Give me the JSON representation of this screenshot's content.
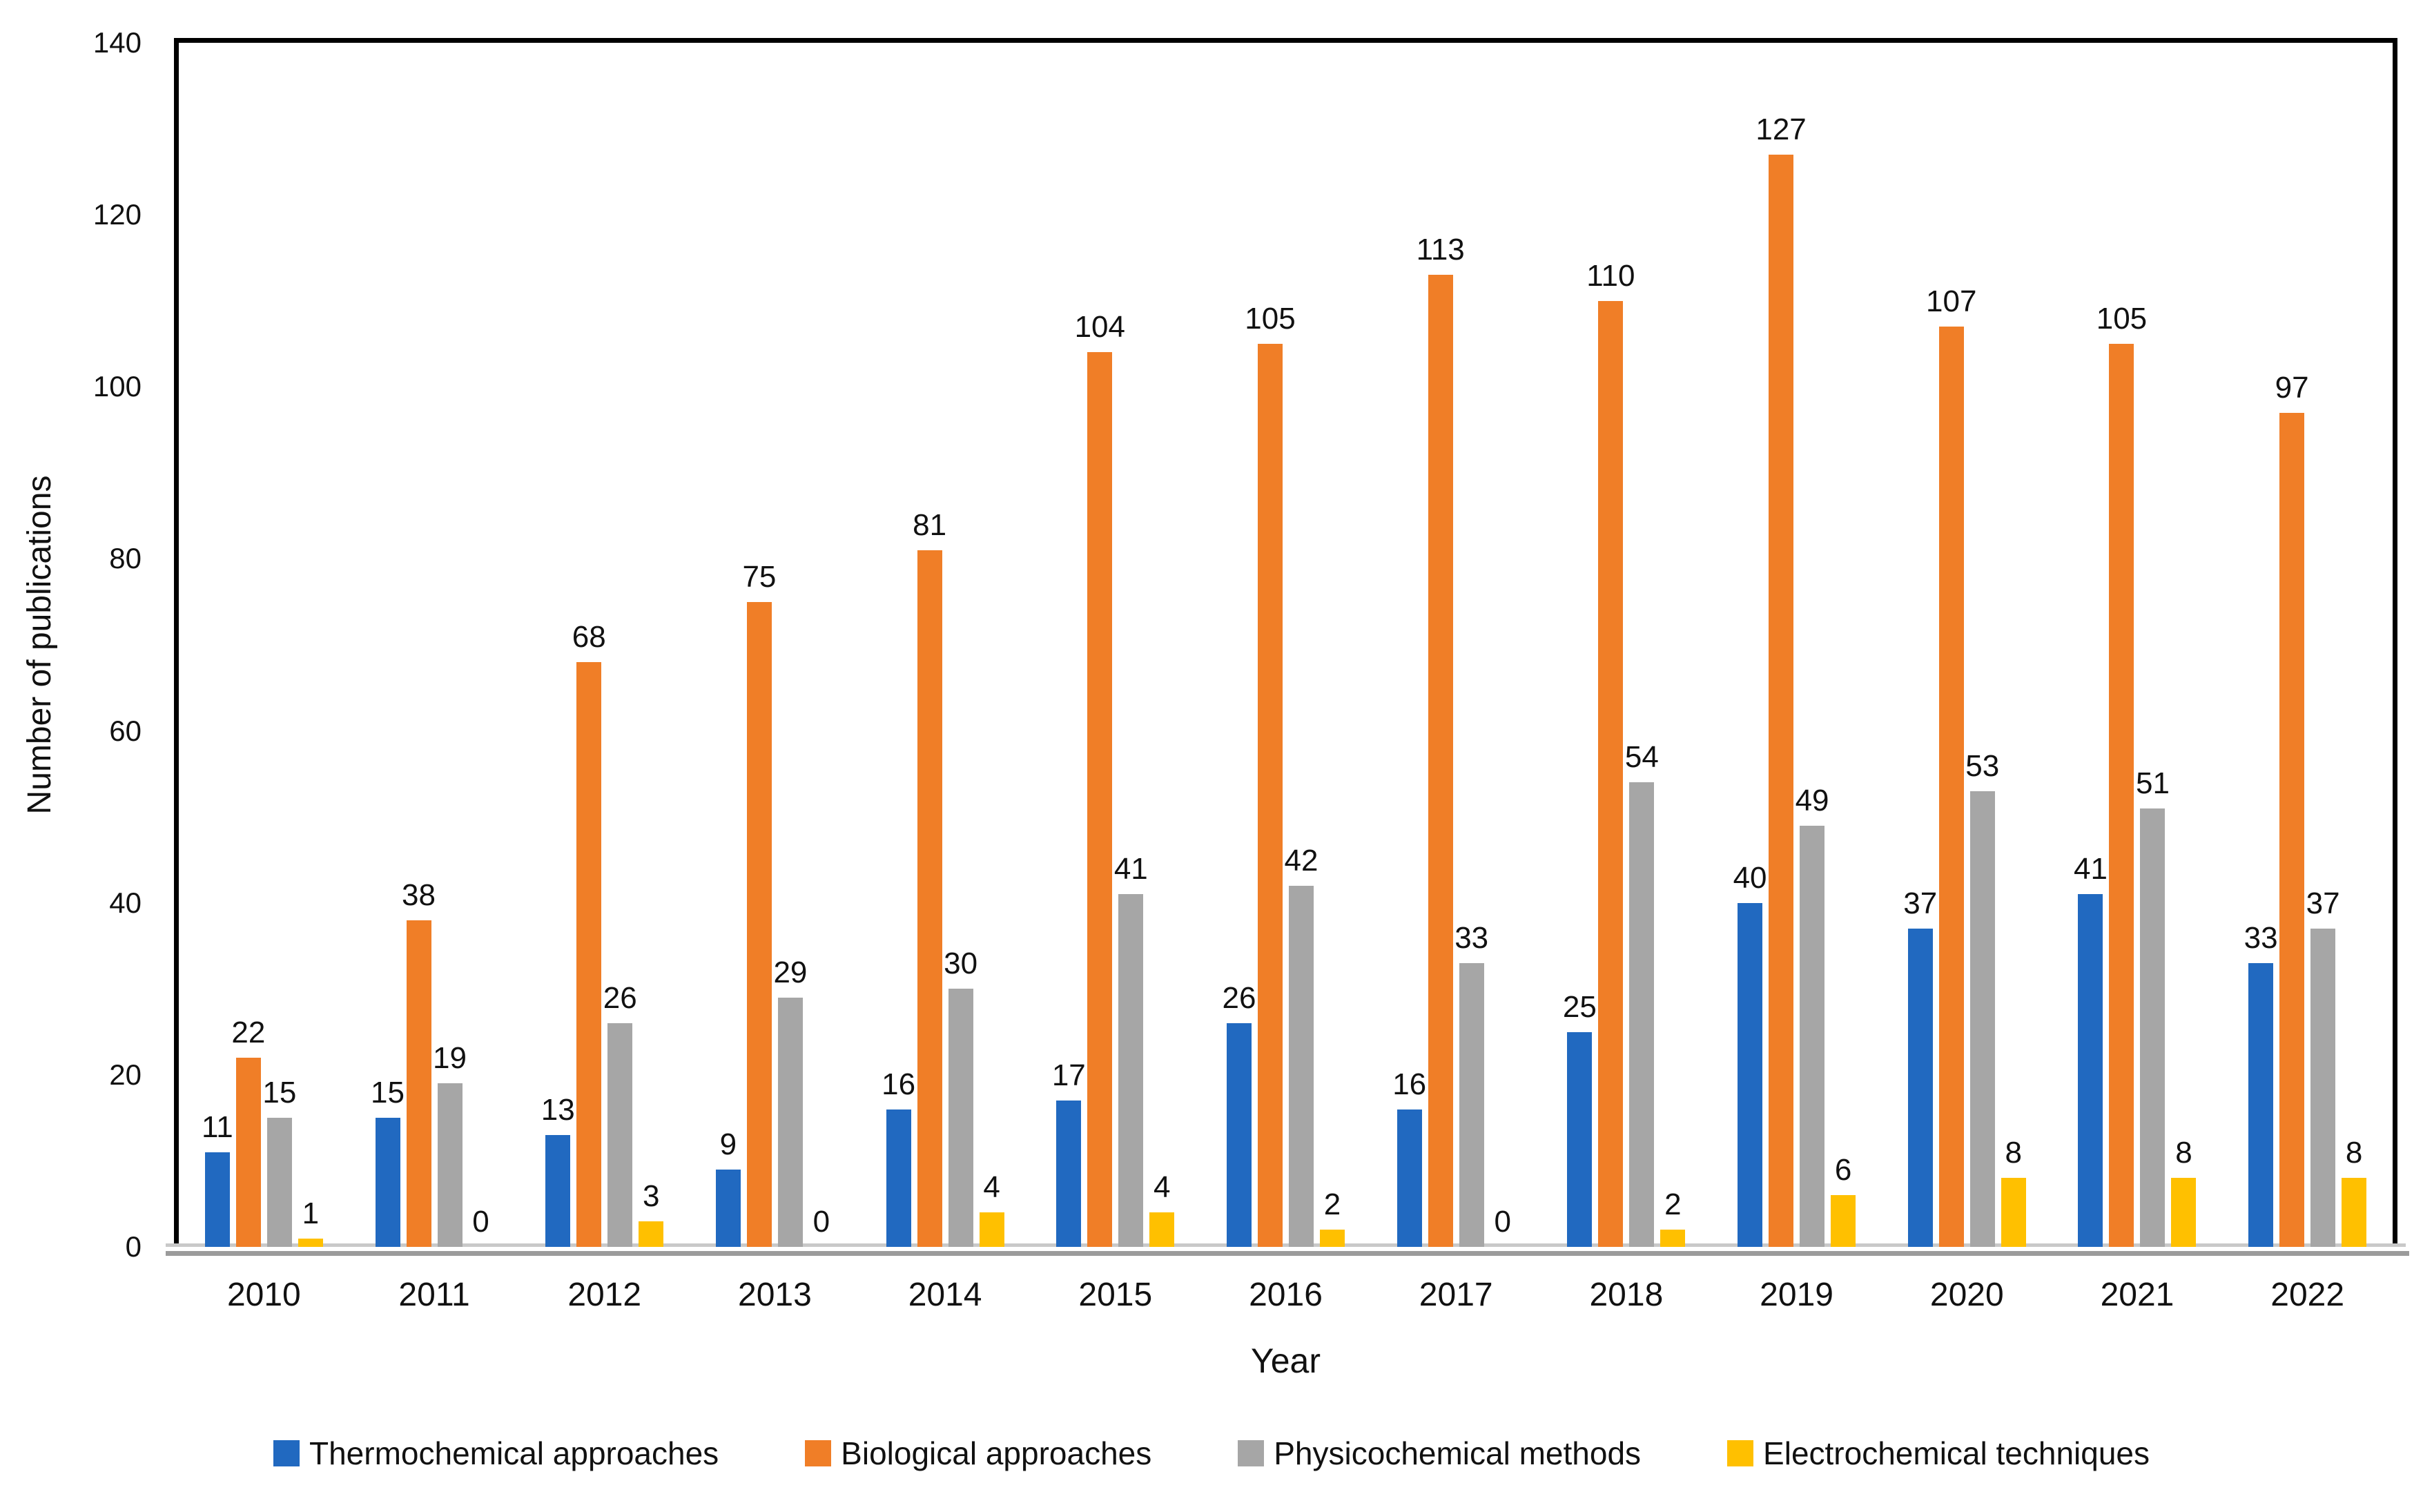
{
  "chart_data": {
    "type": "bar",
    "title": "",
    "xlabel": "Year",
    "ylabel": "Number of publications",
    "ylim": [
      0,
      140
    ],
    "yticks": [
      0,
      20,
      40,
      60,
      80,
      100,
      120,
      140
    ],
    "grid": false,
    "legend_position": "bottom",
    "data_labels": "outside-end",
    "categories": [
      "2010",
      "2011",
      "2012",
      "2013",
      "2014",
      "2015",
      "2016",
      "2017",
      "2018",
      "2019",
      "2020",
      "2021",
      "2022"
    ],
    "series": [
      {
        "name": "Thermochemical approaches",
        "color": "#2169c0",
        "values": [
          11,
          15,
          13,
          9,
          16,
          17,
          26,
          16,
          25,
          40,
          37,
          41,
          33
        ]
      },
      {
        "name": "Biological approaches",
        "color": "#f07e27",
        "values": [
          22,
          38,
          68,
          75,
          81,
          104,
          105,
          113,
          110,
          127,
          107,
          105,
          97
        ]
      },
      {
        "name": "Physicochemical methods",
        "color": "#a6a6a6",
        "values": [
          15,
          19,
          26,
          29,
          30,
          41,
          42,
          33,
          54,
          49,
          53,
          51,
          37
        ]
      },
      {
        "name": "Electrochemical techniques",
        "color": "#ffc000",
        "values": [
          1,
          0,
          3,
          0,
          4,
          4,
          2,
          0,
          2,
          6,
          8,
          8,
          8
        ]
      }
    ]
  }
}
